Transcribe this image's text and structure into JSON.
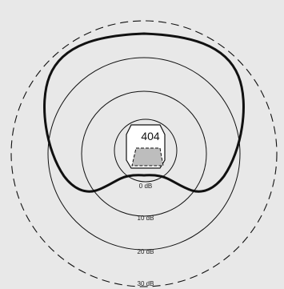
{
  "diagram": {
    "model": "404",
    "rings": [
      {
        "label": "0 dB"
      },
      {
        "label": "10 dB"
      },
      {
        "label": "20 dB"
      },
      {
        "label": "30 dB"
      }
    ],
    "colors": {
      "background": "#e8e8e8",
      "stroke": "#111111",
      "speaker_fill": "#bdbdbd"
    }
  }
}
